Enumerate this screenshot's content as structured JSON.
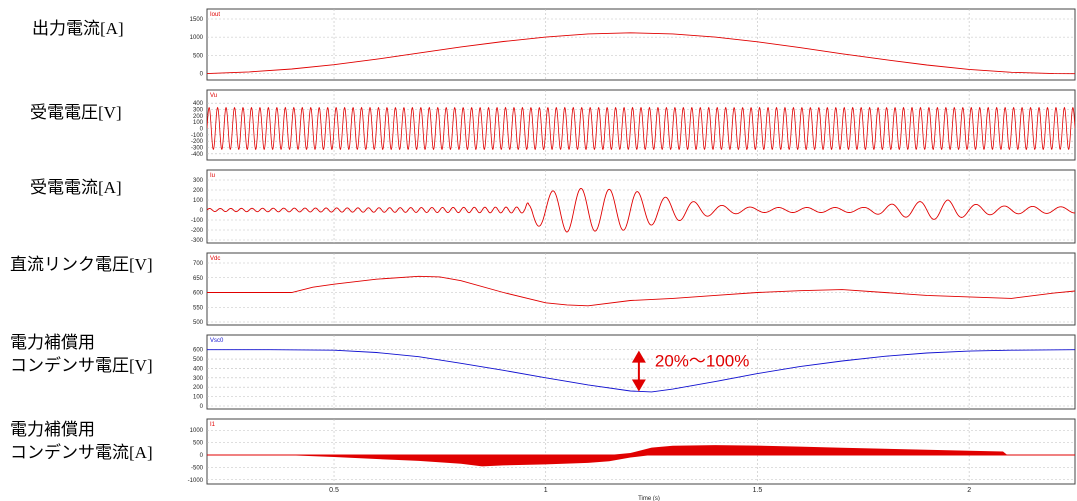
{
  "panel_labels": [
    {
      "line1": "出力電流[A]",
      "line2": ""
    },
    {
      "line1": "受電電圧[V]",
      "line2": ""
    },
    {
      "line1": "受電電流[A]",
      "line2": ""
    },
    {
      "line1": "直流リンク電圧[V]",
      "line2": ""
    },
    {
      "line1": "電力補償用",
      "line2": "コンデンサ電圧[V]"
    },
    {
      "line1": "電力補償用",
      "line2": "コンデンサ電流[A]"
    }
  ],
  "annotation": {
    "text": "20%〜100%",
    "color": "#e00000"
  },
  "chart_data": [
    {
      "type": "line",
      "signal": "Iout",
      "color": "#e00000",
      "xlim": [
        0.2,
        2.25
      ],
      "ylim": [
        -100,
        1500
      ],
      "yticks": [
        0,
        500,
        1000,
        1500
      ],
      "x": [
        0.2,
        0.3,
        0.4,
        0.5,
        0.6,
        0.7,
        0.8,
        0.9,
        1.0,
        1.1,
        1.2,
        1.3,
        1.4,
        1.5,
        1.6,
        1.7,
        1.8,
        1.9,
        2.0,
        2.1,
        2.2,
        2.25
      ],
      "y": [
        -5,
        40,
        120,
        240,
        390,
        560,
        730,
        880,
        1000,
        1090,
        1120,
        1090,
        1000,
        870,
        710,
        540,
        380,
        230,
        110,
        30,
        -5,
        -10
      ]
    },
    {
      "type": "line",
      "signal": "Vu",
      "color": "#e00000",
      "xlim": [
        0.2,
        2.25
      ],
      "ylim": [
        -450,
        450
      ],
      "yticks": [
        -400,
        -300,
        -200,
        -100,
        0,
        100,
        200,
        300,
        400
      ],
      "waveform": {
        "kind": "sine",
        "amplitude": 330,
        "frequency_hz": 50
      }
    },
    {
      "type": "line",
      "signal": "Iu",
      "color": "#e00000",
      "xlim": [
        0.2,
        2.25
      ],
      "ylim": [
        -300,
        300
      ],
      "yticks": [
        -300,
        -200,
        -100,
        0,
        100,
        200,
        300
      ],
      "waveform": {
        "kind": "sine",
        "frequency_hz": 15
      },
      "envelope": {
        "x": [
          0.2,
          0.75,
          0.95,
          0.97,
          1.05,
          1.2,
          1.25,
          1.4,
          1.5,
          1.6,
          1.75,
          1.82,
          1.9,
          1.95,
          2.0,
          2.08,
          2.25
        ],
        "amp": [
          15,
          25,
          30,
          150,
          220,
          200,
          150,
          50,
          25,
          25,
          25,
          60,
          90,
          100,
          60,
          40,
          30
        ]
      }
    },
    {
      "type": "line",
      "signal": "Vdc",
      "color": "#e00000",
      "xlim": [
        0.2,
        2.25
      ],
      "ylim": [
        500,
        700
      ],
      "yticks": [
        500,
        550,
        600,
        650,
        700
      ],
      "x": [
        0.2,
        0.4,
        0.45,
        0.5,
        0.6,
        0.7,
        0.75,
        0.8,
        0.9,
        1.0,
        1.05,
        1.1,
        1.2,
        1.3,
        1.4,
        1.5,
        1.6,
        1.7,
        1.8,
        1.9,
        2.0,
        2.1,
        2.2,
        2.25
      ],
      "y": [
        600,
        600,
        618,
        628,
        645,
        655,
        653,
        640,
        600,
        565,
        558,
        555,
        573,
        580,
        590,
        600,
        606,
        610,
        600,
        590,
        585,
        580,
        598,
        605
      ]
    },
    {
      "type": "line",
      "signal": "Vsc0",
      "color": "#1010d0",
      "xlim": [
        0.2,
        2.25
      ],
      "ylim": [
        0,
        650
      ],
      "yticks": [
        0,
        100,
        200,
        300,
        400,
        500,
        600
      ],
      "x": [
        0.2,
        0.35,
        0.5,
        0.6,
        0.7,
        0.8,
        0.9,
        1.0,
        1.1,
        1.2,
        1.25,
        1.3,
        1.4,
        1.5,
        1.6,
        1.7,
        1.8,
        1.9,
        2.0,
        2.1,
        2.25
      ],
      "y": [
        600,
        600,
        595,
        570,
        525,
        455,
        380,
        300,
        225,
        160,
        150,
        180,
        260,
        345,
        420,
        480,
        530,
        565,
        585,
        595,
        600
      ]
    },
    {
      "type": "area",
      "signal": "I1",
      "color": "#e00000",
      "xlim": [
        0.2,
        2.25
      ],
      "ylim": [
        -1050,
        1050
      ],
      "yticks": [
        -1000,
        -500,
        0,
        500,
        1000
      ],
      "xticks": [
        0.5,
        1,
        1.5,
        2
      ],
      "xlabel": "Time (s)",
      "upper": {
        "x": [
          0.2,
          0.38,
          0.5,
          0.6,
          0.7,
          0.8,
          0.9,
          1.0,
          1.1,
          1.15,
          1.2,
          1.25,
          1.3,
          1.4,
          1.5,
          1.6,
          1.7,
          1.8,
          1.9,
          2.0,
          2.08,
          2.09,
          2.25
        ],
        "y": [
          0,
          0,
          0,
          0,
          0,
          0,
          0,
          0,
          0,
          0,
          80,
          300,
          370,
          400,
          380,
          340,
          290,
          250,
          210,
          170,
          140,
          0,
          0
        ]
      },
      "lower": {
        "x": [
          0.2,
          0.38,
          0.5,
          0.6,
          0.7,
          0.8,
          0.85,
          0.9,
          1.0,
          1.1,
          1.15,
          1.2,
          1.25,
          1.3,
          1.4,
          1.5,
          1.6,
          1.7,
          1.8,
          1.9,
          2.0,
          2.08,
          2.09,
          2.25
        ],
        "y": [
          0,
          0,
          -80,
          -160,
          -240,
          -350,
          -460,
          -420,
          -380,
          -320,
          -250,
          -100,
          0,
          0,
          0,
          0,
          0,
          0,
          0,
          0,
          0,
          0,
          0,
          0
        ]
      }
    }
  ]
}
